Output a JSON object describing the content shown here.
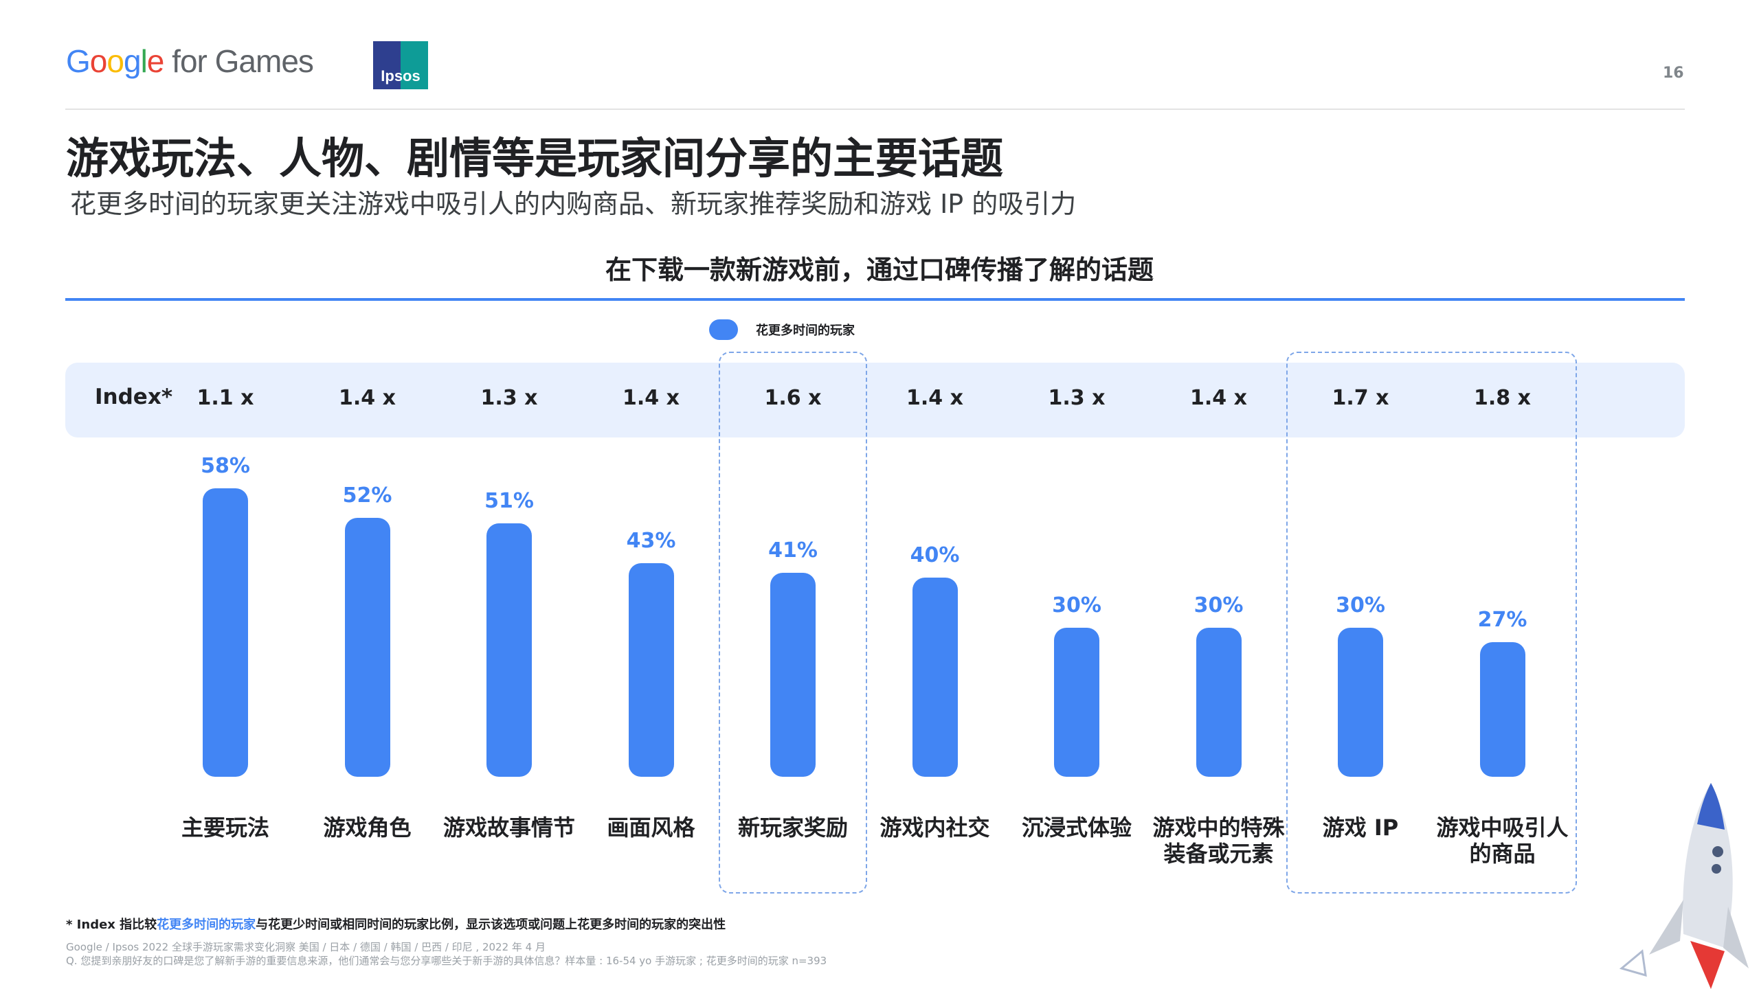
{
  "header": {
    "logo_parts": [
      "G",
      "o",
      "o",
      "g",
      "l",
      "e"
    ],
    "logo_rest": " for Games",
    "partner_logo": "Ipsos",
    "page_number": "16"
  },
  "title": "游戏玩法、人物、剧情等是玩家间分享的主要话题",
  "subtitle": "花更多时间的玩家更关注游戏中吸引人的内购商品、新玩家推荐奖励和游戏 IP 的吸引力",
  "chart_data": {
    "type": "bar",
    "title": "在下载一款新游戏前，通过口碑传播了解的话题",
    "legend": [
      {
        "name": "花更多时间的玩家",
        "color": "#4285f4"
      }
    ],
    "legend_position": "top-center",
    "index_label": "Index*",
    "categories": [
      "主要玩法",
      "游戏角色",
      "游戏故事情节",
      "画面风格",
      "新玩家奖励",
      "游戏内社交",
      "沉浸式体验",
      "游戏中的特殊装备或元素",
      "游戏 IP",
      "游戏中吸引人的商品"
    ],
    "category_lines": [
      [
        "主要玩法"
      ],
      [
        "游戏角色"
      ],
      [
        "游戏故事情节"
      ],
      [
        "画面风格"
      ],
      [
        "新玩家奖励"
      ],
      [
        "游戏内社交"
      ],
      [
        "沉浸式体验"
      ],
      [
        "游戏中的特殊",
        "装备或元素"
      ],
      [
        "游戏 IP"
      ],
      [
        "游戏中吸引人",
        "的商品"
      ]
    ],
    "series": [
      {
        "name": "花更多时间的玩家",
        "values": [
          58,
          52,
          51,
          43,
          41,
          40,
          30,
          30,
          30,
          27
        ]
      }
    ],
    "value_labels": [
      "58%",
      "52%",
      "51%",
      "43%",
      "41%",
      "40%",
      "30%",
      "30%",
      "30%",
      "27%"
    ],
    "index": [
      "1.1 x",
      "1.4 x",
      "1.3 x",
      "1.4 x",
      "1.6 x",
      "1.4 x",
      "1.3 x",
      "1.4 x",
      "1.7 x",
      "1.8 x"
    ],
    "highlighted_categories": [
      "新玩家奖励",
      "游戏 IP",
      "游戏中吸引人的商品"
    ],
    "ylim": [
      0,
      58
    ],
    "bar_color": "#4285f4"
  },
  "footnote": {
    "prefix": "* Index 指比较",
    "highlight": "花更多时间的玩家",
    "suffix": "与花更少时间或相同时间的玩家比例，显示该选项或问题上花更多时间的玩家的突出性"
  },
  "source": [
    "Google / Ipsos 2022 全球手游玩家需求变化洞察 美国 / 日本 / 德国 / 韩国 / 巴西 / 印尼 , 2022 年 4 月",
    "Q. 您提到亲朋好友的口碑是您了解新手游的重要信息来源，他们通常会与您分享哪些关于新手游的具体信息？样本量 : 16-54 yo 手游玩家 ; 花更多时间的玩家 n=393"
  ]
}
